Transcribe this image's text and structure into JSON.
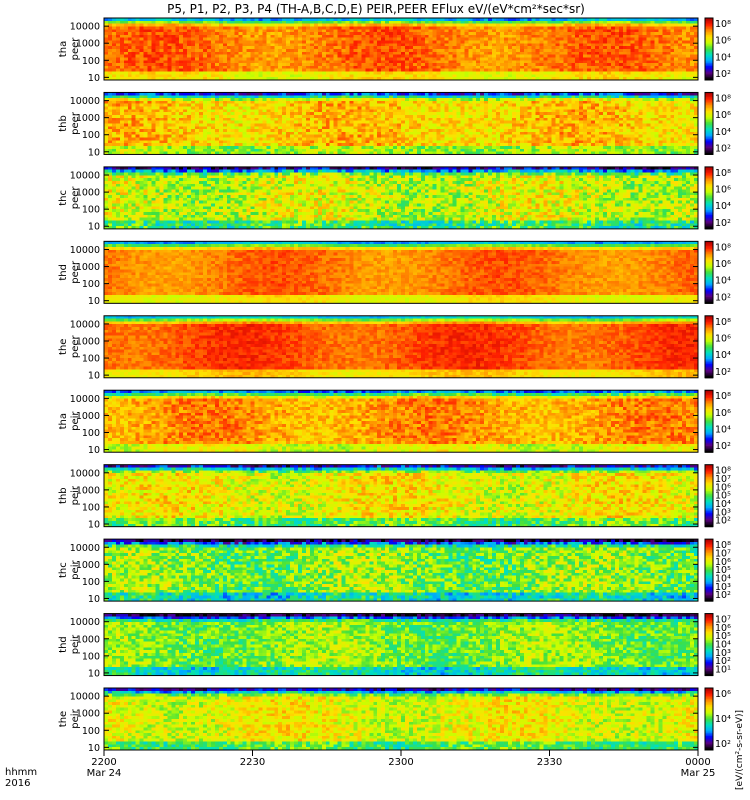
{
  "figure": {
    "title": "P5, P1, P2, P3, P4 (TH-A,B,C,D,E) PEIR,PEER EFlux eV/(eV*cm²*sec*sr)",
    "time_label": "hhmm",
    "year_label": "2016",
    "colorbar_unit": "[eV/(cm²-s-sr-eV)]"
  },
  "chart_data": {
    "type": "heatmap",
    "title": "P5, P1, P2, P3, P4 (TH-A,B,C,D,E) PEIR,PEER EFlux eV/(eV*cm²*sec*sr)",
    "x_axis": {
      "ticks": [
        {
          "value": "2200",
          "date": "Mar 24"
        },
        {
          "value": "2230",
          "date": ""
        },
        {
          "value": "2300",
          "date": ""
        },
        {
          "value": "2330",
          "date": ""
        },
        {
          "value": "0000",
          "date": "Mar 25"
        }
      ],
      "range": [
        "2016-03-24 22:00",
        "2016-03-25 00:00"
      ]
    },
    "y_axis": {
      "scale": "log",
      "range": [
        7,
        30000
      ],
      "ticks": [
        {
          "value": 10,
          "label": "10"
        },
        {
          "value": 100,
          "label": "100"
        },
        {
          "value": 1000,
          "label": "1000"
        },
        {
          "value": 10000,
          "label": "10000"
        }
      ]
    },
    "colormap": [
      "#000000",
      "#5a0080",
      "#0000ff",
      "#00aaff",
      "#00e0c0",
      "#40e040",
      "#c8ff00",
      "#ffe000",
      "#ff9000",
      "#ff2000",
      "#b00000"
    ],
    "panels": [
      {
        "probe": "tha",
        "species": "peer",
        "colorbar_range": [
          1,
          8
        ],
        "colorbar_labels": [
          "10⁸",
          "10⁶",
          "10⁴",
          "10²"
        ],
        "mean_level": 0.82,
        "spread": 0.12
      },
      {
        "probe": "thb",
        "species": "peer",
        "colorbar_range": [
          1,
          8
        ],
        "colorbar_labels": [
          "10⁸",
          "10⁶",
          "10⁴",
          "10²"
        ],
        "mean_level": 0.72,
        "spread": 0.2
      },
      {
        "probe": "thc",
        "species": "peer",
        "colorbar_range": [
          1,
          8
        ],
        "colorbar_labels": [
          "10⁸",
          "10⁶",
          "10⁴",
          "10²"
        ],
        "mean_level": 0.62,
        "spread": 0.25
      },
      {
        "probe": "thd",
        "species": "peer",
        "colorbar_range": [
          1,
          8
        ],
        "colorbar_labels": [
          "10⁸",
          "10⁶",
          "10⁴",
          "10²"
        ],
        "mean_level": 0.82,
        "spread": 0.08
      },
      {
        "probe": "the",
        "species": "peer",
        "colorbar_range": [
          1,
          8
        ],
        "colorbar_labels": [
          "10⁸",
          "10⁶",
          "10⁴",
          "10²"
        ],
        "mean_level": 0.86,
        "spread": 0.08
      },
      {
        "probe": "tha",
        "species": "peir",
        "colorbar_range": [
          1,
          8
        ],
        "colorbar_labels": [
          "10⁸",
          "10⁶",
          "10⁴",
          "10²"
        ],
        "mean_level": 0.78,
        "spread": 0.15
      },
      {
        "probe": "thb",
        "species": "peir",
        "colorbar_range": [
          1,
          8
        ],
        "colorbar_labels": [
          "10⁸",
          "10⁷",
          "10⁶",
          "10⁵",
          "10⁴",
          "10³",
          "10²"
        ],
        "mean_level": 0.66,
        "spread": 0.22
      },
      {
        "probe": "thc",
        "species": "peir",
        "colorbar_range": [
          1,
          8
        ],
        "colorbar_labels": [
          "10⁸",
          "10⁷",
          "10⁶",
          "10⁵",
          "10⁴",
          "10³",
          "10²"
        ],
        "mean_level": 0.55,
        "spread": 0.25
      },
      {
        "probe": "thd",
        "species": "peir",
        "colorbar_range": [
          1,
          7
        ],
        "colorbar_labels": [
          "10⁷",
          "10⁶",
          "10⁵",
          "10⁴",
          "10³",
          "10²",
          "10¹"
        ],
        "mean_level": 0.55,
        "spread": 0.2
      },
      {
        "probe": "the",
        "species": "peir",
        "colorbar_range": [
          1,
          7
        ],
        "colorbar_labels": [
          "10⁶",
          "10⁴",
          "10²"
        ],
        "mean_level": 0.65,
        "spread": 0.2
      }
    ]
  }
}
